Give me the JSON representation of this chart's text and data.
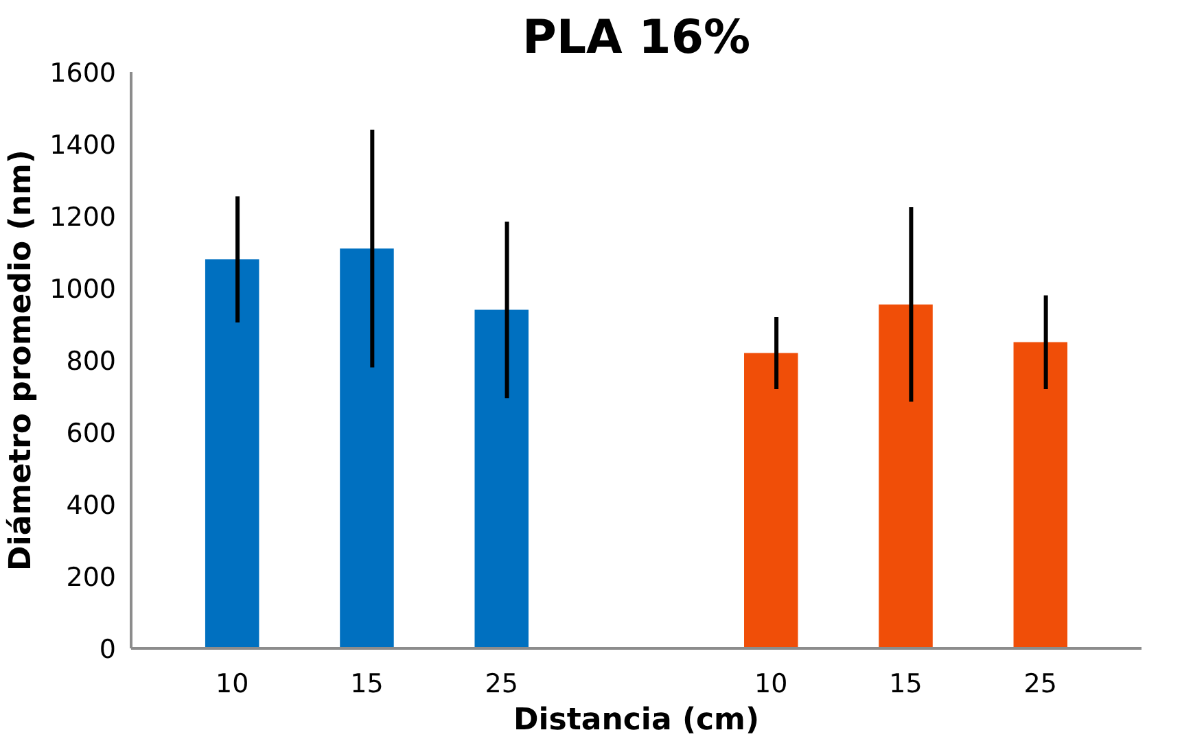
{
  "chart_data": {
    "type": "bar",
    "title": "PLA 16%",
    "xlabel": "Distancia (cm)",
    "ylabel": "Diámetro promedio (nm)",
    "categories": [
      "10",
      "15",
      "25",
      null,
      "10",
      "15",
      "25"
    ],
    "values": [
      1080,
      1110,
      940,
      null,
      820,
      955,
      850
    ],
    "errors": [
      175,
      330,
      245,
      null,
      100,
      270,
      130
    ],
    "colors": [
      "#0070c0",
      "#0070c0",
      "#0070c0",
      null,
      "#f04e08",
      "#f04e08",
      "#f04e08"
    ],
    "ylim": [
      0,
      1600
    ],
    "yticks": [
      0,
      200,
      400,
      600,
      800,
      1000,
      1200,
      1400,
      1600
    ],
    "grid": false
  }
}
